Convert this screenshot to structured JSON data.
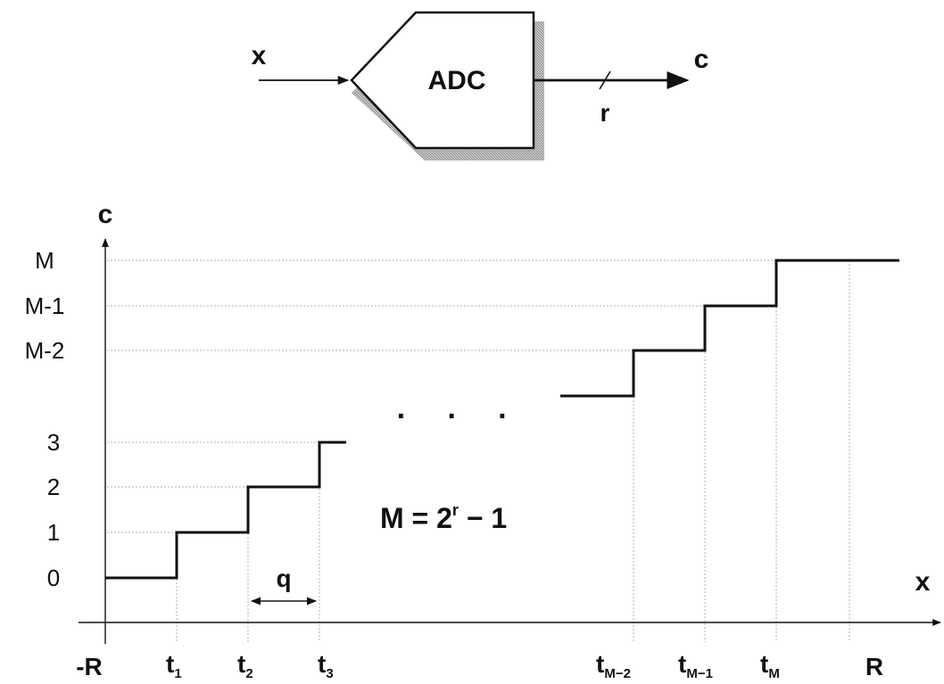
{
  "adc_block": {
    "input_label": "x",
    "output_label": "c",
    "bus_width_label": "r",
    "block_label": "ADC"
  },
  "axes": {
    "y_label": "c",
    "x_label": "x"
  },
  "y_levels": [
    {
      "label": "M"
    },
    {
      "label": "M-1"
    },
    {
      "label": "M-2"
    },
    {
      "label": "3"
    },
    {
      "label": "2"
    },
    {
      "label": "1"
    },
    {
      "label": "0"
    }
  ],
  "x_ticks": {
    "neg_range": "-R",
    "pos_range": "R",
    "thresholds": [
      {
        "base": "t",
        "sub": "1"
      },
      {
        "base": "t",
        "sub": "2"
      },
      {
        "base": "t",
        "sub": "3"
      },
      {
        "base": "t",
        "sub": "M−2"
      },
      {
        "base": "t",
        "sub": "M−1"
      },
      {
        "base": "t",
        "sub": "M"
      }
    ]
  },
  "step_label": "q",
  "ellipsis": "· · ·",
  "formula": {
    "lhs": "M = 2",
    "exp": "r",
    "rhs": " − 1"
  }
}
